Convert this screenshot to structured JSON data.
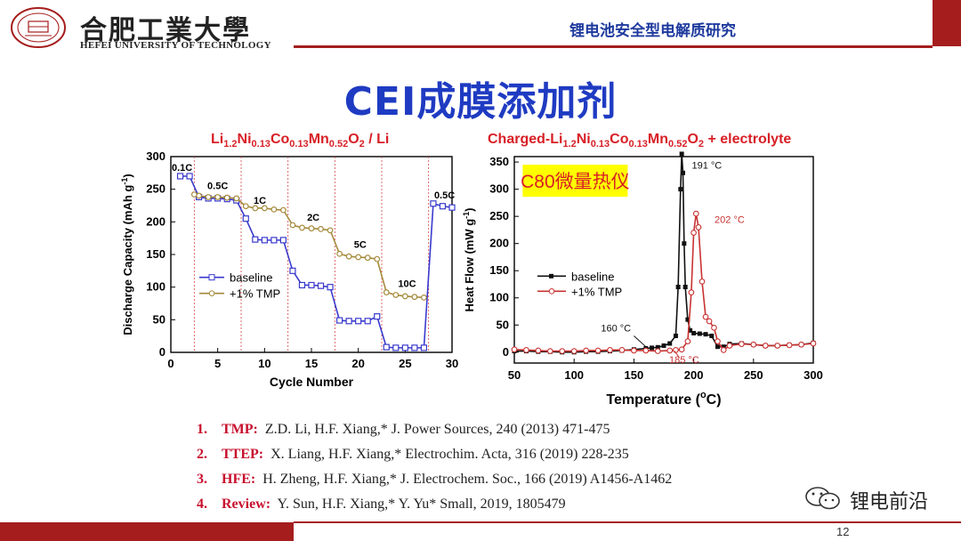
{
  "header": {
    "university_cn": "合肥工業大學",
    "university_en": "HEFEI UNIVERSITY OF TECHNOLOGY",
    "topic": "锂电池安全型电解质研究"
  },
  "slide": {
    "title": "CEI成膜添加剂",
    "page_number": "12"
  },
  "colors": {
    "accent_red": "#a51d1d",
    "title_blue": "#1f3bc2",
    "baseline": "#3a3acd",
    "tmp_left": "#a58a3a",
    "tmp_right": "#c83232"
  },
  "chart_data": [
    {
      "type": "line",
      "title_parts": [
        "Li",
        "1.2",
        "Ni",
        "0.13",
        "Co",
        "0.13",
        "Mn",
        "0.52",
        "O",
        "2",
        " / Li"
      ],
      "xlabel": "Cycle Number",
      "ylabel": "Discharge Capacity  (mAh g",
      "ylabel_sup": "-1",
      "xlim": [
        0,
        30
      ],
      "ylim": [
        0,
        300
      ],
      "xticks": [
        0,
        5,
        10,
        15,
        20,
        25,
        30
      ],
      "yticks": [
        0,
        50,
        100,
        150,
        200,
        250,
        300
      ],
      "rate_boundaries": [
        2.5,
        7.5,
        12.5,
        17.5,
        22.5,
        27.5
      ],
      "rate_labels": [
        {
          "text": "0.1C",
          "x": 1.2,
          "y": 278
        },
        {
          "text": "0.5C",
          "x": 5.0,
          "y": 250
        },
        {
          "text": "1C",
          "x": 9.5,
          "y": 228
        },
        {
          "text": "2C",
          "x": 15.2,
          "y": 202
        },
        {
          "text": "5C",
          "x": 20.2,
          "y": 160
        },
        {
          "text": "10C",
          "x": 25.2,
          "y": 100
        },
        {
          "text": "0.5C",
          "x": 29.2,
          "y": 236
        }
      ],
      "legend": "center-left",
      "series": [
        {
          "name": "baseline",
          "x": [
            1,
            2,
            3,
            4,
            5,
            6,
            7,
            8,
            9,
            10,
            11,
            12,
            13,
            14,
            15,
            16,
            17,
            18,
            19,
            20,
            21,
            22,
            23,
            24,
            25,
            26,
            27,
            28,
            29,
            30
          ],
          "values": [
            270,
            270,
            238,
            236,
            236,
            235,
            233,
            205,
            173,
            172,
            172,
            172,
            125,
            103,
            103,
            102,
            100,
            49,
            48,
            48,
            48,
            55,
            8,
            7,
            7,
            7,
            7,
            228,
            224,
            222
          ]
        },
        {
          "name": "+1% TMP",
          "x": [
            2.5,
            3,
            4,
            5,
            6,
            7,
            8,
            9,
            10,
            11,
            12,
            13,
            14,
            15,
            16,
            17,
            18,
            19,
            20,
            21,
            22,
            23,
            24,
            25,
            26,
            27
          ],
          "values": [
            242,
            240,
            238,
            238,
            237,
            236,
            224,
            221,
            221,
            219,
            218,
            195,
            191,
            190,
            189,
            187,
            151,
            147,
            146,
            145,
            143,
            92,
            88,
            86,
            85,
            84
          ]
        }
      ]
    },
    {
      "type": "line",
      "title_parts": [
        "Charged-Li",
        "1.2",
        "Ni",
        "0.13",
        "Co",
        "0.13",
        "Mn",
        "0.52",
        "O",
        "2",
        "  + electrolyte"
      ],
      "xlabel": "Temperature  (",
      "xlabel_sup": "o",
      "xlabel_end": "C)",
      "ylabel": "Heat Flow  (mW g",
      "ylabel_sup": "-1",
      "xlim": [
        50,
        300
      ],
      "ylim": [
        -20,
        360
      ],
      "xticks": [
        50,
        100,
        150,
        200,
        250,
        300
      ],
      "yticks": [
        0,
        50,
        100,
        150,
        200,
        250,
        300,
        350
      ],
      "legend": "center-left",
      "box_label": "C80微量热仪",
      "annotations": [
        {
          "text": "191 °C",
          "x": 211,
          "y": 338
        },
        {
          "text": "202 °C",
          "x": 230,
          "y": 238
        },
        {
          "text": "160 °C",
          "x": 135,
          "y": 38
        },
        {
          "text": "185 °C",
          "x": 192,
          "y": -20
        }
      ],
      "series": [
        {
          "name": "baseline",
          "x": [
            50,
            60,
            70,
            80,
            90,
            100,
            110,
            120,
            130,
            140,
            150,
            160,
            165,
            170,
            175,
            180,
            185,
            187,
            189,
            190,
            191,
            192,
            193,
            195,
            197,
            200,
            205,
            210,
            215,
            220,
            225,
            230,
            240,
            250,
            260,
            270,
            280,
            290,
            300
          ],
          "values": [
            2,
            2,
            1,
            1,
            0,
            0,
            1,
            1,
            2,
            3,
            5,
            7,
            8,
            9,
            12,
            16,
            30,
            120,
            300,
            365,
            330,
            200,
            120,
            60,
            40,
            35,
            34,
            33,
            30,
            10,
            10,
            15,
            16,
            14,
            12,
            12,
            13,
            14,
            17
          ]
        },
        {
          "name": "+1% TMP",
          "x": [
            50,
            60,
            70,
            80,
            90,
            100,
            110,
            120,
            130,
            140,
            150,
            160,
            170,
            180,
            185,
            190,
            195,
            198,
            200,
            202,
            204,
            207,
            210,
            213,
            217,
            220,
            225,
            230,
            240,
            250,
            260,
            270,
            280,
            290,
            300
          ],
          "values": [
            5,
            4,
            3,
            2,
            2,
            2,
            3,
            3,
            4,
            4,
            3,
            3,
            2,
            3,
            4,
            5,
            20,
            110,
            220,
            255,
            230,
            130,
            65,
            57,
            45,
            20,
            4,
            12,
            15,
            14,
            12,
            12,
            13,
            14,
            16
          ]
        }
      ]
    }
  ],
  "references": [
    {
      "num": "1.",
      "key": "TMP:",
      "text": "Z.D. Li, H.F. Xiang,*   J. Power Sources, 240 (2013) 471-475"
    },
    {
      "num": "2.",
      "key": "TTEP:",
      "text": "X. Liang, H.F. Xiang,*    Electrochim. Acta, 316 (2019) 228-235"
    },
    {
      "num": "3.",
      "key": "HFE:",
      "text": "H. Zheng, H.F. Xiang,*   J. Electrochem. Soc., 166 (2019) A1456-A1462"
    },
    {
      "num": "4.",
      "key": "Review:",
      "text": "Y. Sun, H.F. Xiang,* Y. Yu*   Small, 2019, 1805479"
    }
  ],
  "watermark": {
    "text": "锂电前沿",
    "icon": "wechat-icon"
  }
}
